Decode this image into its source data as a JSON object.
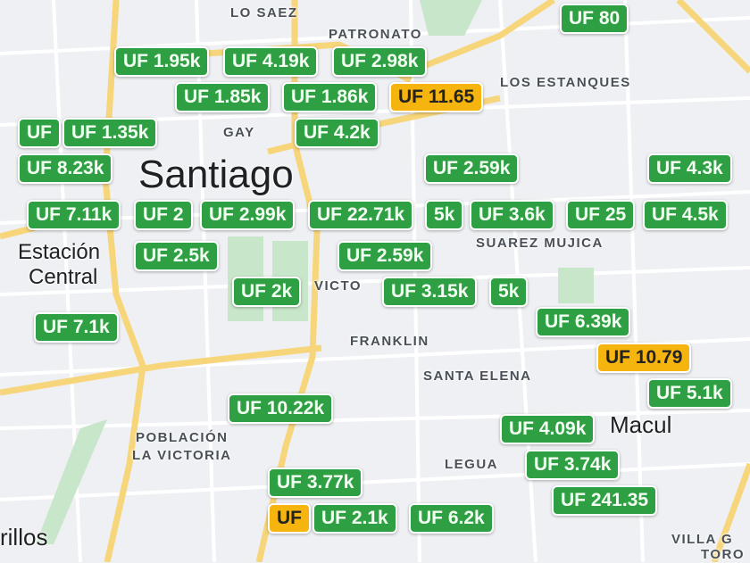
{
  "map": {
    "places": [
      {
        "name": "LO SAEZ"
      },
      {
        "name": "PATRONATO"
      },
      {
        "name": "LOS ESTANQUES"
      },
      {
        "name": "GAY"
      },
      {
        "name": "SUAREZ MUJICA"
      },
      {
        "name": "VICTO"
      },
      {
        "name": "FRANKLIN"
      },
      {
        "name": "SANTA ELENA"
      },
      {
        "name": "POBLACIÓN"
      },
      {
        "name": "LA VICTORIA"
      },
      {
        "name": "LEGUA"
      },
      {
        "name": "VILLA G"
      },
      {
        "name": "TORO"
      }
    ],
    "cities": [
      {
        "name": "Santiago"
      },
      {
        "name": "Estación"
      },
      {
        "name": "Central"
      },
      {
        "name": "Macul"
      },
      {
        "name": "rillos"
      }
    ],
    "colors": {
      "marker_default": "#2ea043",
      "marker_highlight": "#f6b50e",
      "road": "#f7d57a",
      "park": "#c8e6c9"
    },
    "markers": [
      {
        "price": "UF 80",
        "highlight": false
      },
      {
        "price": "UF 4.19k",
        "highlight": false
      },
      {
        "price": "UF 1.95k",
        "highlight": false
      },
      {
        "price": "UF 1.85k",
        "highlight": false
      },
      {
        "price": "UF 11.65",
        "highlight": true
      },
      {
        "price": "UF 2.98k",
        "highlight": false
      },
      {
        "price": "UF 4.2k",
        "highlight": false
      },
      {
        "price": "UF 1.86k",
        "highlight": false
      },
      {
        "price": "UF 1.35k",
        "highlight": false
      },
      {
        "price": "UF 8.23k",
        "highlight": false
      },
      {
        "price": "UF",
        "highlight": false
      },
      {
        "price": "UF 7.11k",
        "highlight": false
      },
      {
        "price": "UF 2.5k",
        "highlight": false
      },
      {
        "price": "UF 2",
        "highlight": false
      },
      {
        "price": "UF 2.99k",
        "highlight": false
      },
      {
        "price": "5k",
        "highlight": false
      },
      {
        "price": "UF 2.59k",
        "highlight": false
      },
      {
        "price": "UF 22.71k",
        "highlight": false
      },
      {
        "price": "UF 2.59k",
        "highlight": false
      },
      {
        "price": "5k",
        "highlight": false
      },
      {
        "price": "UF 2k",
        "highlight": false
      },
      {
        "price": "UF 3.15k",
        "highlight": false
      },
      {
        "price": "UF 4.3k",
        "highlight": false
      },
      {
        "price": "UF 4.5k",
        "highlight": false
      },
      {
        "price": "UF 3.6k",
        "highlight": false
      },
      {
        "price": "UF 25",
        "highlight": false
      },
      {
        "price": "UF 7.1k",
        "highlight": false
      },
      {
        "price": "UF 6.39k",
        "highlight": false
      },
      {
        "price": "UF 10.79",
        "highlight": true
      },
      {
        "price": "UF 4.09k",
        "highlight": false
      },
      {
        "price": "UF 5.1k",
        "highlight": false
      },
      {
        "price": "UF 10.22k",
        "highlight": false
      },
      {
        "price": "UF 3.74k",
        "highlight": false
      },
      {
        "price": "UF 241.35",
        "highlight": false
      },
      {
        "price": "UF 3.77k",
        "highlight": false
      },
      {
        "price": "UF 6.2k",
        "highlight": false
      },
      {
        "price": "UF",
        "highlight": true
      },
      {
        "price": "UF 2.1k",
        "highlight": false
      }
    ]
  }
}
